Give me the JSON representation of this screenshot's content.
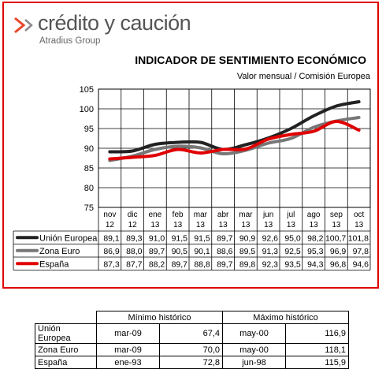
{
  "brand": {
    "name": "crédito y caución",
    "group": "Atradius Group",
    "mark_colors": [
      "#e8472b",
      "#8a8a8a"
    ]
  },
  "chart_data": {
    "type": "line",
    "title": "INDICADOR DE SENTIMIENTO ECONÓMICO",
    "subtitle": "Valor mensual / Comisión Europea",
    "categories": [
      [
        "nov",
        "12"
      ],
      [
        "dic",
        "12"
      ],
      [
        "ene",
        "13"
      ],
      [
        "feb",
        "13"
      ],
      [
        "mar",
        "13"
      ],
      [
        "abr",
        "13"
      ],
      [
        "mar",
        "13"
      ],
      [
        "jun",
        "13"
      ],
      [
        "jul",
        "13"
      ],
      [
        "ago",
        "13"
      ],
      [
        "sep",
        "13"
      ],
      [
        "oct",
        "13"
      ]
    ],
    "ylim": [
      75,
      105
    ],
    "yticks": [
      75,
      80,
      85,
      90,
      95,
      100,
      105
    ],
    "grid": true,
    "series": [
      {
        "name": "Unión Europea",
        "color": "#222222",
        "values": [
          89.1,
          89.3,
          91.0,
          91.5,
          91.5,
          89.7,
          90.9,
          92.6,
          95.0,
          98.2,
          100.7,
          101.8
        ],
        "labels": [
          "89,1",
          "89,3",
          "91,0",
          "91,5",
          "91,5",
          "89,7",
          "90,9",
          "92,6",
          "95,0",
          "98,2",
          "100,7",
          "101,8"
        ]
      },
      {
        "name": "Zona Euro",
        "color": "#777777",
        "values": [
          86.9,
          88.0,
          89.7,
          90.5,
          90.1,
          88.6,
          89.5,
          91.3,
          92.5,
          95.3,
          96.9,
          97.8
        ],
        "labels": [
          "86,9",
          "88,0",
          "89,7",
          "90,5",
          "90,1",
          "88,6",
          "89,5",
          "91,3",
          "92,5",
          "95,3",
          "96,9",
          "97,8"
        ]
      },
      {
        "name": "España",
        "color": "#e00000",
        "values": [
          87.3,
          87.7,
          88.2,
          89.7,
          88.8,
          89.7,
          89.8,
          92.3,
          93.5,
          94.3,
          96.8,
          94.6
        ],
        "labels": [
          "87,3",
          "87,7",
          "88,2",
          "89,7",
          "88,8",
          "89,7",
          "89,8",
          "92,3",
          "93,5",
          "94,3",
          "96,8",
          "94,6"
        ]
      }
    ]
  },
  "historic_table": {
    "headers": [
      "Mínimo histórico",
      "Máximo histórico"
    ],
    "rows": [
      {
        "name": "Unión Europea",
        "min_date": "mar-09",
        "min_value": "67,4",
        "max_date": "may-00",
        "max_value": "116,9"
      },
      {
        "name": "Zona Euro",
        "min_date": "mar-09",
        "min_value": "70,0",
        "max_date": "may-00",
        "max_value": "118,1"
      },
      {
        "name": "España",
        "min_date": "ene-93",
        "min_value": "72,8",
        "max_date": "jun-98",
        "max_value": "115,9"
      }
    ]
  }
}
